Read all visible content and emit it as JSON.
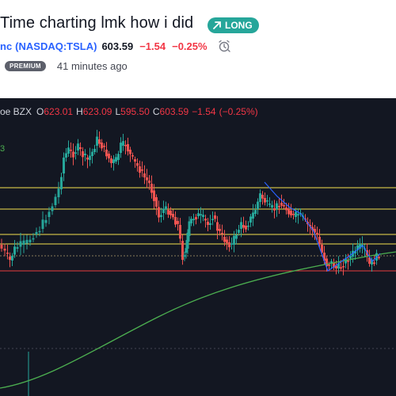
{
  "idea": {
    "title": "Time charting lmk how i did",
    "badge": "LONG",
    "symbol_tail": "nc",
    "symbol_link": "(NASDAQ:TSLA)",
    "price": "603.59",
    "change": "−1.54",
    "change_pct": "−0.25%",
    "premium_label": "PREMIUM",
    "time_ago": "41 minutes ago"
  },
  "legend": {
    "exchange": "oe BZX",
    "open_label": "O",
    "open": "623.01",
    "high_label": "H",
    "high": "623.09",
    "low_label": "L",
    "low": "595.50",
    "close_label": "C",
    "close": "603.59",
    "change": "−1.54",
    "change_pct": "(−0.25%)"
  },
  "ma_stub": "3",
  "colors": {
    "up": "#26a69a",
    "down": "#ef5350",
    "background": "#131722",
    "yellow_line": "#f4e04d",
    "red_line": "#e83e3e",
    "ma": "#4caf50",
    "trend": "#2962ff",
    "long_badge": "#26a69a"
  }
}
